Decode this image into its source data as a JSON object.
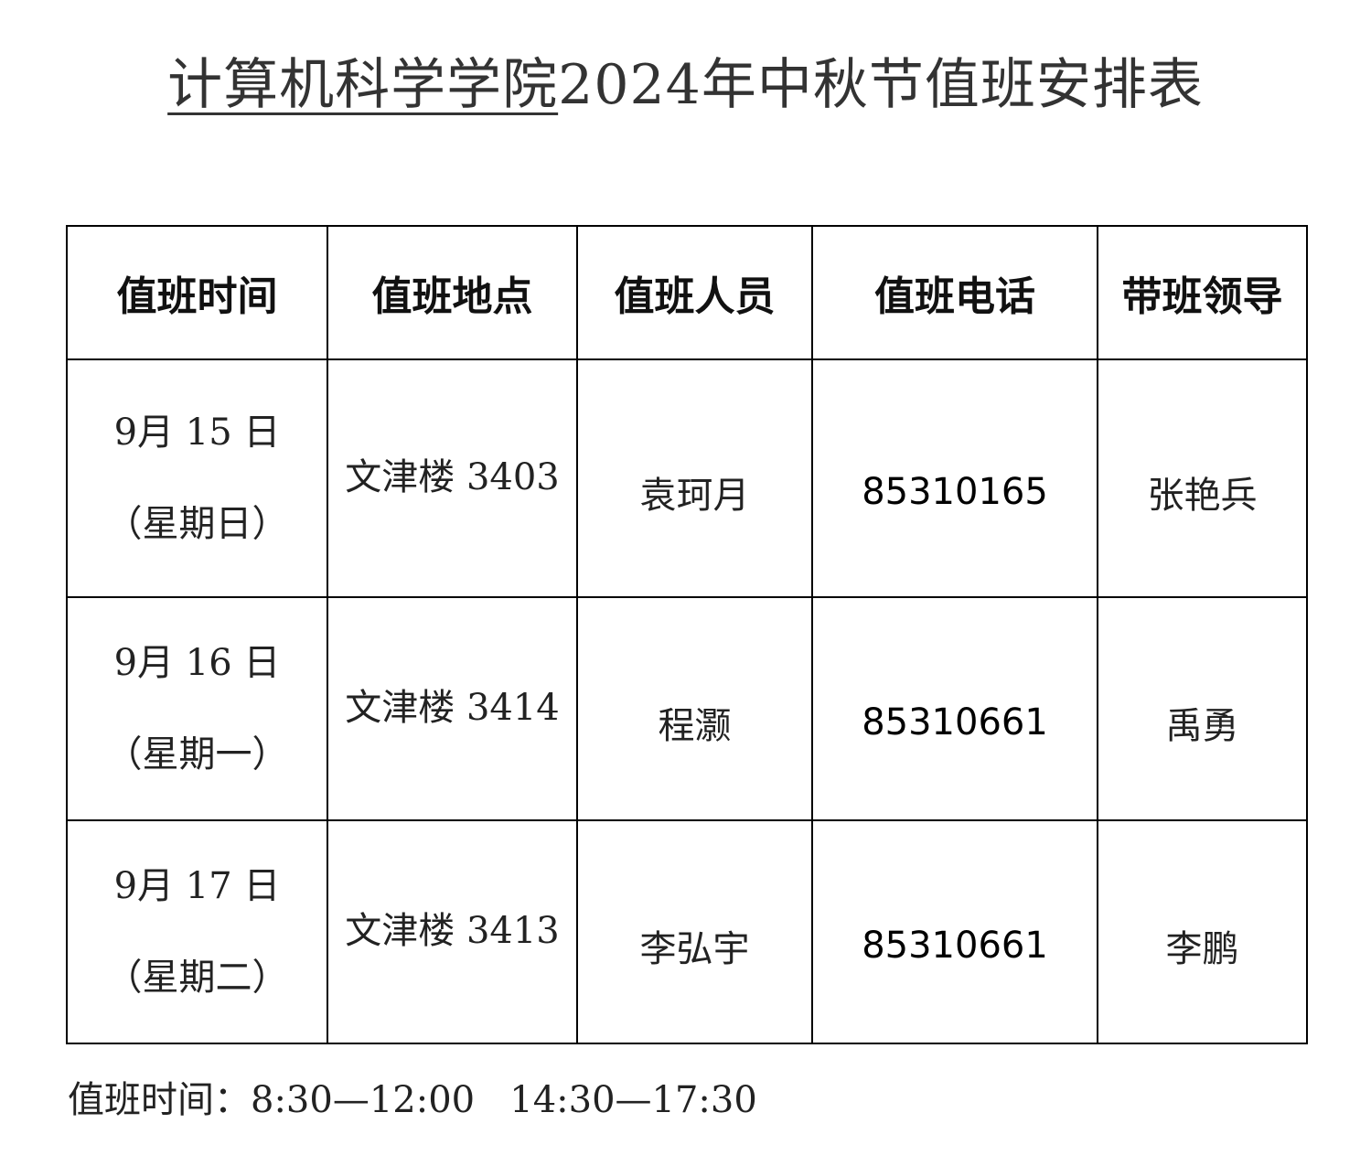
{
  "title": {
    "underlined": "计算机科学学院",
    "rest": "2024年中秋节值班安排表"
  },
  "table": {
    "headers": [
      "值班时间",
      "值班地点",
      "值班人员",
      "值班电话",
      "带班领导"
    ],
    "rows": [
      {
        "date": "9月 15 日",
        "weekday": "（星期日）",
        "location": "文津楼 3403",
        "staff": "袁珂月",
        "phone": "85310165",
        "leader": "张艳兵"
      },
      {
        "date": "9月 16 日",
        "weekday": "（星期一）",
        "location": "文津楼 3414",
        "staff": "程灏",
        "phone": "85310661",
        "leader": "禹勇"
      },
      {
        "date": "9月 17 日",
        "weekday": "（星期二）",
        "location": "文津楼 3413",
        "staff": "李弘宇",
        "phone": "85310661",
        "leader": "李鹏"
      }
    ]
  },
  "footer": {
    "label": "值班时间：",
    "hours": "8:30—12:00   14:30—17:30"
  }
}
